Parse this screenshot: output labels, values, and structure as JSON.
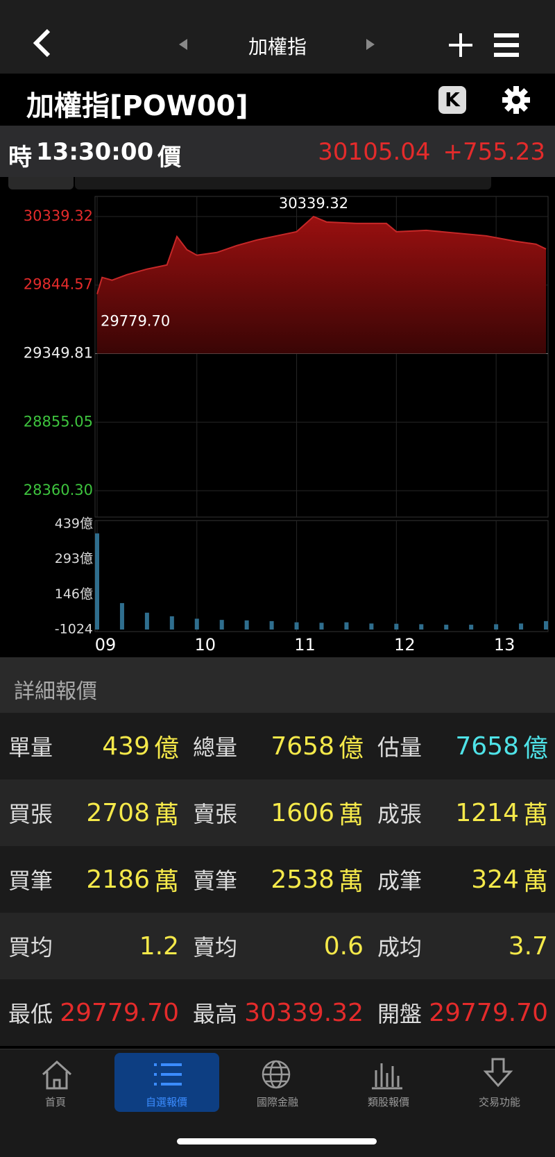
{
  "nav": {
    "title": "加權指"
  },
  "header": {
    "title": "加權指[POW00]",
    "k_button": "K"
  },
  "quote": {
    "time_label": "時",
    "time": "13:30:00",
    "price_label": "價",
    "price": "30105.04",
    "change": "+755.23"
  },
  "chart_data": [
    {
      "type": "area",
      "color": "#c62828",
      "x": [
        9.0,
        9.05,
        9.15,
        9.3,
        9.5,
        9.7,
        9.8,
        9.9,
        10.0,
        10.2,
        10.4,
        10.6,
        10.8,
        11.0,
        11.17,
        11.3,
        11.6,
        11.9,
        12.0,
        12.3,
        12.6,
        12.9,
        13.2,
        13.4,
        13.5
      ],
      "values": [
        29779.7,
        29900,
        29880,
        29920,
        29960,
        29990,
        30195,
        30100,
        30060,
        30080,
        30130,
        30170,
        30200,
        30230,
        30339.32,
        30300,
        30290,
        30290,
        30230,
        30240,
        30220,
        30200,
        30160,
        30140,
        30105.04
      ],
      "xlim": [
        9,
        13.5
      ],
      "xticks": [
        {
          "value": 9,
          "label": "09"
        },
        10,
        11,
        12,
        13
      ],
      "ylim": [
        28360.3,
        30339.32
      ],
      "yticks": [
        30339.32,
        29844.57,
        29349.81,
        28855.05,
        {
          "value": 28360.3,
          "label": "28360.30"
        }
      ],
      "annotations": [
        {
          "x": 11.17,
          "value": 30339.32
        },
        {
          "x": 9.0,
          "value": 29779.7,
          "label": "29779.70"
        }
      ],
      "grid": true
    },
    {
      "type": "bar",
      "color": "#2f6e8e",
      "x": [
        9.0,
        9.25,
        9.5,
        9.75,
        10.0,
        10.25,
        10.5,
        10.75,
        11.0,
        11.25,
        11.5,
        11.75,
        12.0,
        12.25,
        12.5,
        12.75,
        13.0,
        13.25,
        13.5
      ],
      "values": [
        400,
        110,
        70,
        55,
        45,
        40,
        38,
        35,
        30,
        28,
        30,
        25,
        24,
        22,
        20,
        20,
        22,
        25,
        35
      ],
      "xlim": [
        9,
        13.5
      ],
      "yticks": [
        {
          "value": 439,
          "label": "439億"
        },
        {
          "value": 293,
          "label": "293億"
        },
        {
          "value": 146,
          "label": "146億"
        },
        -1024
      ]
    }
  ],
  "details": {
    "title": "詳細報價",
    "rows": [
      [
        {
          "label": "單量",
          "value": "439",
          "unit": "億"
        },
        {
          "label": "總量",
          "value": "7658",
          "unit": "億"
        },
        {
          "label": "估量",
          "value": "7658",
          "unit": "億"
        }
      ],
      [
        {
          "label": "買張",
          "value": "2708",
          "unit": "萬"
        },
        {
          "label": "賣張",
          "value": "1606",
          "unit": "萬"
        },
        {
          "label": "成張",
          "value": "1214",
          "unit": "萬"
        }
      ],
      [
        {
          "label": "買筆",
          "value": "2186",
          "unit": "萬"
        },
        {
          "label": "賣筆",
          "value": "2538",
          "unit": "萬"
        },
        {
          "label": "成筆",
          "value": "324",
          "unit": "萬"
        }
      ],
      [
        {
          "label": "買均",
          "value": "1.2"
        },
        {
          "label": "賣均",
          "value": "0.6"
        },
        {
          "label": "成均",
          "value": "3.7"
        }
      ],
      [
        {
          "label": "最低",
          "value": "29779.70"
        },
        {
          "label": "最高",
          "value": "30339.32"
        },
        {
          "label": "開盤",
          "value": "29779.70"
        }
      ]
    ]
  },
  "tabs": [
    "首頁",
    "自選報價",
    "國際金融",
    "類股報價",
    "交易功能"
  ]
}
